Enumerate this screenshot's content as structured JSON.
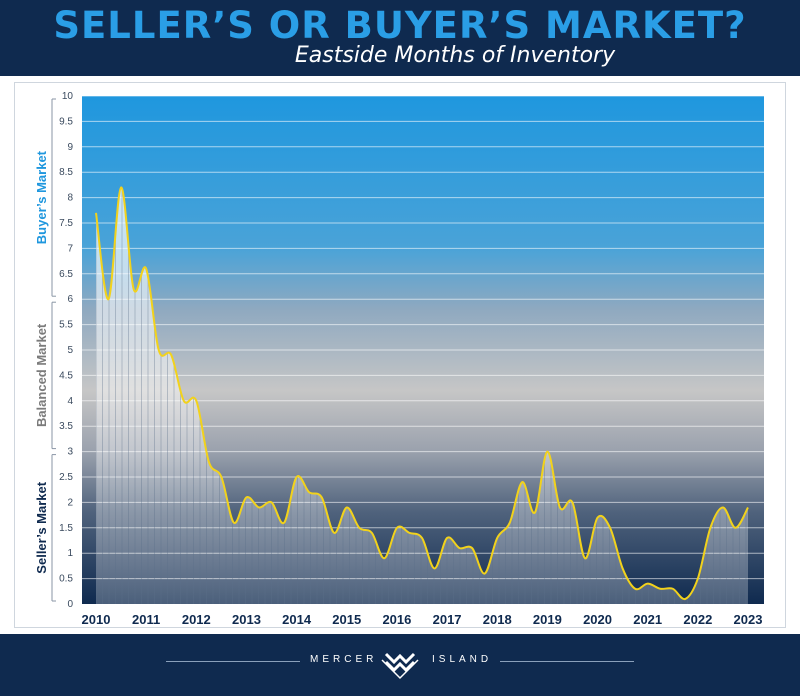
{
  "header": {
    "title": "SELLER’S OR BUYER’S MARKET?",
    "subtitle": "Eastside Months of Inventory"
  },
  "footer": {
    "left_text": "MERCER",
    "right_text": "ISLAND",
    "logo_icon": "windermere-w-logo-icon"
  },
  "colors": {
    "navy": "#0f2a4f",
    "buyer_blue": "#1f97de",
    "balanced_gray": "#c4c4c4",
    "seller_navy": "#13325a",
    "line": "#f2d21b",
    "title_blue": "#2a9ee6"
  },
  "chart_data": {
    "type": "area",
    "x_unit": "year",
    "xlim": [
      2010,
      2023
    ],
    "ylim": [
      0,
      10
    ],
    "y_ticks": [
      0,
      0.5,
      1,
      1.5,
      2,
      2.5,
      3,
      3.5,
      4,
      4.5,
      5,
      5.5,
      6,
      6.5,
      7,
      7.5,
      8,
      8.5,
      9,
      9.5,
      10
    ],
    "x_ticks": [
      2010,
      2011,
      2012,
      2013,
      2014,
      2015,
      2016,
      2017,
      2018,
      2019,
      2020,
      2021,
      2022,
      2023
    ],
    "zones": [
      {
        "label": "Seller’s Market",
        "from": 0,
        "to": 3
      },
      {
        "label": "Balanced Market",
        "from": 3,
        "to": 6
      },
      {
        "label": "Buyer’s Market",
        "from": 6,
        "to": 10
      }
    ],
    "series": [
      {
        "x": [
          2010.0,
          2010.25,
          2010.5,
          2010.75,
          2011.0,
          2011.25,
          2011.5,
          2011.75,
          2012.0,
          2012.25,
          2012.5,
          2012.75,
          2013.0,
          2013.25,
          2013.5,
          2013.75,
          2014.0,
          2014.25,
          2014.5,
          2014.75,
          2015.0,
          2015.25,
          2015.5,
          2015.75,
          2016.0,
          2016.25,
          2016.5,
          2016.75,
          2017.0,
          2017.25,
          2017.5,
          2017.75,
          2018.0,
          2018.25,
          2018.5,
          2018.75,
          2019.0,
          2019.25,
          2019.5,
          2019.75,
          2020.0,
          2020.25,
          2020.5,
          2020.75,
          2021.0,
          2021.25,
          2021.5,
          2021.75,
          2022.0,
          2022.25,
          2022.5,
          2022.75,
          2023.0
        ],
        "y": [
          7.7,
          6.0,
          8.2,
          6.2,
          6.6,
          5.0,
          4.9,
          4.0,
          4.0,
          2.8,
          2.5,
          1.6,
          2.1,
          1.9,
          2.0,
          1.6,
          2.5,
          2.2,
          2.1,
          1.4,
          1.9,
          1.5,
          1.4,
          0.9,
          1.5,
          1.4,
          1.3,
          0.7,
          1.3,
          1.1,
          1.1,
          0.6,
          1.3,
          1.6,
          2.4,
          1.8,
          3.0,
          1.9,
          2.0,
          0.9,
          1.7,
          1.5,
          0.7,
          0.3,
          0.4,
          0.3,
          0.3,
          0.1,
          0.5,
          1.5,
          1.9,
          1.5,
          1.9
        ]
      }
    ]
  }
}
